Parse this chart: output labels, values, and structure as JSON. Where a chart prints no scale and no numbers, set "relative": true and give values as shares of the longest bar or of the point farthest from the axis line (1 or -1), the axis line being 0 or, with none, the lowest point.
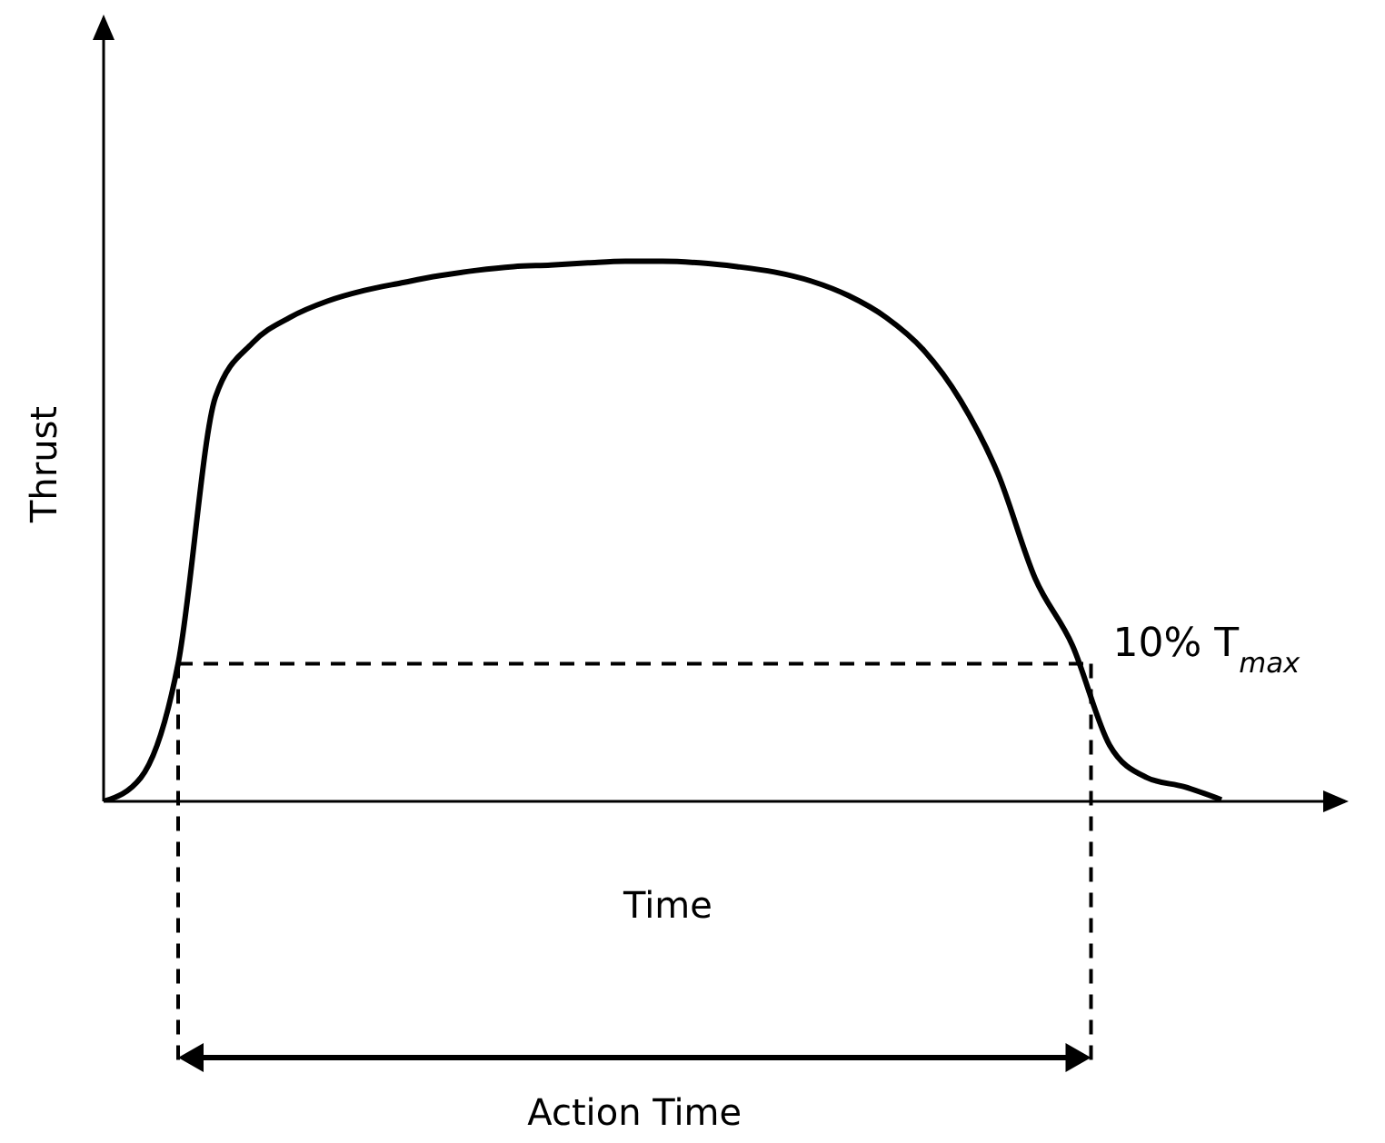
{
  "chart_data": {
    "type": "line",
    "relative": true,
    "xlabel": "Time",
    "ylabel": "Thrust",
    "color": "#000000",
    "categories": [
      null,
      null,
      null,
      null,
      null,
      null,
      null,
      null,
      null,
      null,
      null,
      null,
      null,
      null,
      null,
      null,
      null,
      null,
      null,
      null,
      null,
      null,
      null,
      null,
      null,
      null,
      null,
      null,
      null,
      null,
      null
    ],
    "values": [
      0,
      0.044,
      0.255,
      0.748,
      0.849,
      0.896,
      0.926,
      0.946,
      0.96,
      0.973,
      0.983,
      0.99,
      0.993,
      0.997,
      1,
      1,
      0.997,
      0.99,
      0.98,
      0.963,
      0.936,
      0.896,
      0.836,
      0.742,
      0.607,
      0.413,
      0.289,
      0.104,
      0.044,
      0.027,
      0.003
    ],
    "ref_lines": [
      {
        "axis": "y",
        "value": 0.255,
        "label": "10% T$_{max}$",
        "line_style": "dashed"
      }
    ],
    "annotations": [
      "Action Time"
    ],
    "marker": "none",
    "line_style": "solid",
    "grid": false,
    "legend": false,
    "tick_labels": false
  }
}
